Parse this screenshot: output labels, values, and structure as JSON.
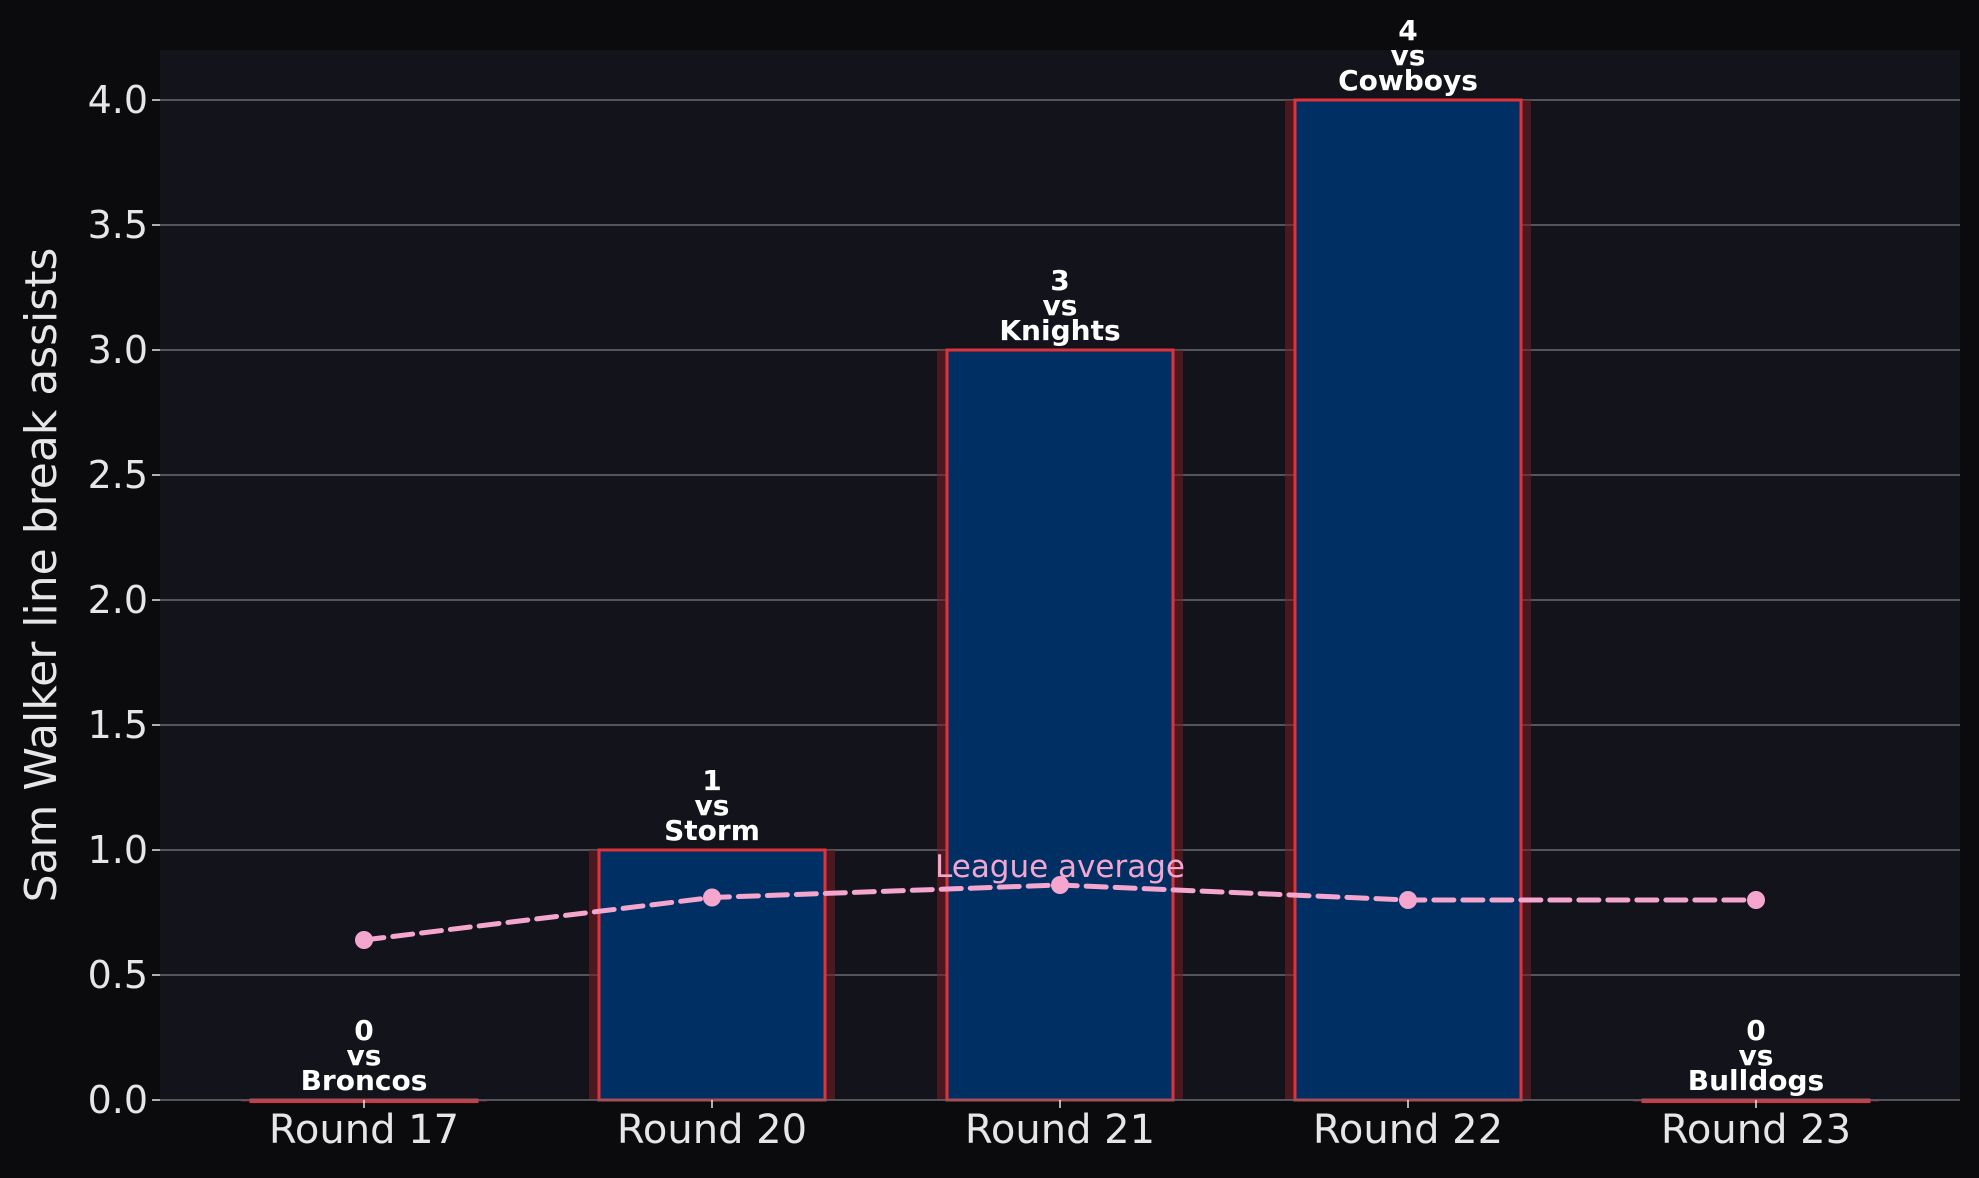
{
  "chart_data": {
    "type": "bar",
    "categories": [
      "Round 17",
      "Round 20",
      "Round 21",
      "Round 22",
      "Round 23"
    ],
    "values": [
      0,
      1,
      3,
      4,
      0
    ],
    "bar_labels": [
      [
        "0",
        "vs",
        "Broncos"
      ],
      [
        "1",
        "vs",
        "Storm"
      ],
      [
        "3",
        "vs",
        "Knights"
      ],
      [
        "4",
        "vs",
        "Cowboys"
      ],
      [
        "0",
        "vs",
        "Bulldogs"
      ]
    ],
    "overlay": {
      "type": "line",
      "values": [
        0.64,
        0.81,
        0.86,
        0.8,
        0.8
      ],
      "label": "League average",
      "style": "dashed"
    },
    "ylabel": "Sam Walker line break assists",
    "xlabel": "",
    "ylim": [
      0,
      4.2
    ],
    "yticks": [
      "0.0",
      "0.5",
      "1.0",
      "1.5",
      "2.0",
      "2.5",
      "3.0",
      "3.5",
      "4.0"
    ],
    "grid": "horizontal",
    "colors": {
      "figure_background": "#0b0b0e",
      "plot_background": "#13141b",
      "bar_fill": "#002f63",
      "bar_edge": "#e0323a",
      "bar_glow": "#7a1c22",
      "overlay_line": "#f4a6cf",
      "gridline": "#6b6b70",
      "text": "#e6e6e6",
      "label_text": "#ffffff"
    }
  }
}
